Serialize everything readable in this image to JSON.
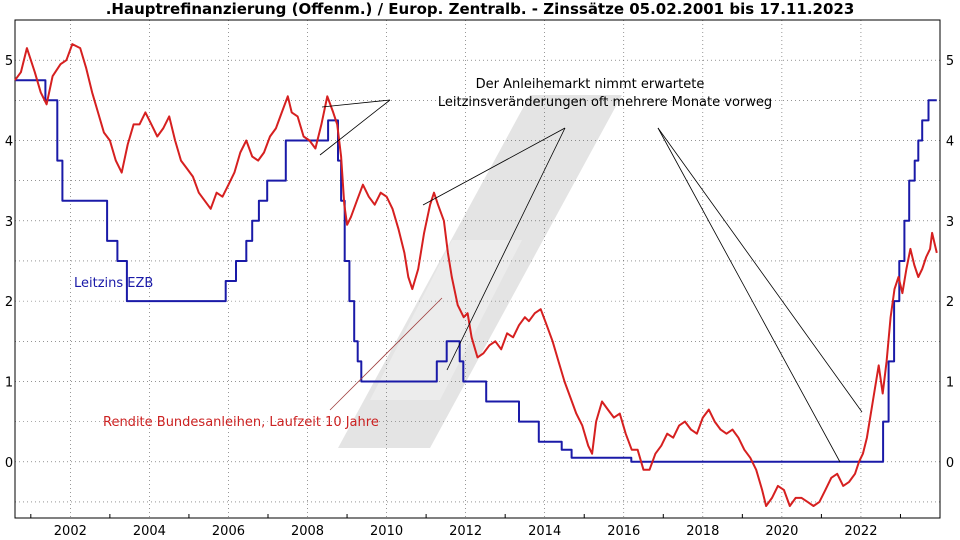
{
  "chart_data": {
    "type": "line",
    "title": ".Hauptrefinanzierung (Offenm.) / Europ. Zentralb. - Zinssätze 05.02.2001 bis 17.11.2023",
    "xlabel": "",
    "ylabel": "",
    "xlim": [
      2000.6,
      2024.0
    ],
    "ylim": [
      -0.7,
      5.5
    ],
    "x_ticks": [
      2002,
      2004,
      2006,
      2008,
      2010,
      2012,
      2014,
      2016,
      2018,
      2020,
      2022
    ],
    "x_tick_labels": [
      "2002",
      "2004",
      "2006",
      "2008",
      "2010",
      "2012",
      "2014",
      "2016",
      "2018",
      "2020",
      "2022"
    ],
    "y_ticks": [
      0,
      1,
      2,
      3,
      4,
      5
    ],
    "y_tick_labels": [
      "0",
      "1",
      "2",
      "3",
      "4",
      "5"
    ],
    "grid": true,
    "series": [
      {
        "name": "Leitzins EZB",
        "color": "#1a1aa8",
        "step": true,
        "points": [
          [
            2000.6,
            4.75
          ],
          [
            2001.37,
            4.5
          ],
          [
            2001.67,
            3.75
          ],
          [
            2001.8,
            3.25
          ],
          [
            2002.93,
            2.75
          ],
          [
            2003.19,
            2.5
          ],
          [
            2003.43,
            2.0
          ],
          [
            2005.93,
            2.25
          ],
          [
            2006.19,
            2.5
          ],
          [
            2006.45,
            2.75
          ],
          [
            2006.6,
            3.0
          ],
          [
            2006.77,
            3.25
          ],
          [
            2006.98,
            3.5
          ],
          [
            2007.45,
            3.75
          ],
          [
            2007.45,
            4.0
          ],
          [
            2008.52,
            4.25
          ],
          [
            2008.77,
            3.75
          ],
          [
            2008.85,
            3.25
          ],
          [
            2008.94,
            2.5
          ],
          [
            2009.06,
            2.0
          ],
          [
            2009.18,
            1.5
          ],
          [
            2009.27,
            1.25
          ],
          [
            2009.36,
            1.0
          ],
          [
            2011.27,
            1.25
          ],
          [
            2011.52,
            1.5
          ],
          [
            2011.85,
            1.25
          ],
          [
            2011.94,
            1.0
          ],
          [
            2012.52,
            0.75
          ],
          [
            2013.35,
            0.5
          ],
          [
            2013.85,
            0.25
          ],
          [
            2014.43,
            0.15
          ],
          [
            2014.68,
            0.05
          ],
          [
            2016.19,
            0.0
          ],
          [
            2022.56,
            0.5
          ],
          [
            2022.7,
            1.25
          ],
          [
            2022.84,
            2.0
          ],
          [
            2022.97,
            2.5
          ],
          [
            2023.1,
            3.0
          ],
          [
            2023.22,
            3.5
          ],
          [
            2023.36,
            3.75
          ],
          [
            2023.45,
            4.0
          ],
          [
            2023.55,
            4.25
          ],
          [
            2023.71,
            4.5
          ],
          [
            2023.92,
            4.5
          ]
        ]
      },
      {
        "name": "Rendite Bundesanleihen, Laufzeit 10 Jahre",
        "color": "#d62020",
        "step": false,
        "points": [
          [
            2000.6,
            4.75
          ],
          [
            2000.75,
            4.85
          ],
          [
            2000.9,
            5.15
          ],
          [
            2001.1,
            4.85
          ],
          [
            2001.25,
            4.6
          ],
          [
            2001.4,
            4.45
          ],
          [
            2001.55,
            4.8
          ],
          [
            2001.75,
            4.95
          ],
          [
            2001.9,
            5.0
          ],
          [
            2002.05,
            5.2
          ],
          [
            2002.25,
            5.15
          ],
          [
            2002.4,
            4.9
          ],
          [
            2002.55,
            4.6
          ],
          [
            2002.7,
            4.35
          ],
          [
            2002.85,
            4.1
          ],
          [
            2003.0,
            4.0
          ],
          [
            2003.15,
            3.75
          ],
          [
            2003.3,
            3.6
          ],
          [
            2003.45,
            3.95
          ],
          [
            2003.6,
            4.2
          ],
          [
            2003.75,
            4.2
          ],
          [
            2003.9,
            4.35
          ],
          [
            2004.05,
            4.2
          ],
          [
            2004.2,
            4.05
          ],
          [
            2004.35,
            4.15
          ],
          [
            2004.5,
            4.3
          ],
          [
            2004.65,
            4.0
          ],
          [
            2004.8,
            3.75
          ],
          [
            2004.95,
            3.65
          ],
          [
            2005.1,
            3.55
          ],
          [
            2005.25,
            3.35
          ],
          [
            2005.4,
            3.25
          ],
          [
            2005.55,
            3.15
          ],
          [
            2005.7,
            3.35
          ],
          [
            2005.85,
            3.3
          ],
          [
            2006.0,
            3.45
          ],
          [
            2006.15,
            3.6
          ],
          [
            2006.3,
            3.85
          ],
          [
            2006.45,
            4.0
          ],
          [
            2006.6,
            3.8
          ],
          [
            2006.75,
            3.75
          ],
          [
            2006.9,
            3.85
          ],
          [
            2007.05,
            4.05
          ],
          [
            2007.2,
            4.15
          ],
          [
            2007.35,
            4.35
          ],
          [
            2007.5,
            4.55
          ],
          [
            2007.6,
            4.35
          ],
          [
            2007.75,
            4.3
          ],
          [
            2007.9,
            4.05
          ],
          [
            2008.05,
            4.0
          ],
          [
            2008.2,
            3.9
          ],
          [
            2008.35,
            4.2
          ],
          [
            2008.5,
            4.55
          ],
          [
            2008.65,
            4.35
          ],
          [
            2008.75,
            4.2
          ],
          [
            2008.85,
            3.8
          ],
          [
            2008.93,
            3.2
          ],
          [
            2009.0,
            2.95
          ],
          [
            2009.1,
            3.05
          ],
          [
            2009.25,
            3.25
          ],
          [
            2009.4,
            3.45
          ],
          [
            2009.55,
            3.3
          ],
          [
            2009.7,
            3.2
          ],
          [
            2009.85,
            3.35
          ],
          [
            2010.0,
            3.3
          ],
          [
            2010.15,
            3.15
          ],
          [
            2010.3,
            2.9
          ],
          [
            2010.45,
            2.6
          ],
          [
            2010.55,
            2.3
          ],
          [
            2010.65,
            2.15
          ],
          [
            2010.8,
            2.4
          ],
          [
            2010.95,
            2.85
          ],
          [
            2011.1,
            3.2
          ],
          [
            2011.2,
            3.35
          ],
          [
            2011.3,
            3.2
          ],
          [
            2011.45,
            3.0
          ],
          [
            2011.55,
            2.6
          ],
          [
            2011.65,
            2.3
          ],
          [
            2011.8,
            1.95
          ],
          [
            2011.95,
            1.8
          ],
          [
            2012.05,
            1.85
          ],
          [
            2012.15,
            1.55
          ],
          [
            2012.3,
            1.3
          ],
          [
            2012.45,
            1.35
          ],
          [
            2012.6,
            1.45
          ],
          [
            2012.75,
            1.5
          ],
          [
            2012.9,
            1.4
          ],
          [
            2013.05,
            1.6
          ],
          [
            2013.2,
            1.55
          ],
          [
            2013.35,
            1.7
          ],
          [
            2013.5,
            1.8
          ],
          [
            2013.6,
            1.75
          ],
          [
            2013.75,
            1.85
          ],
          [
            2013.9,
            1.9
          ],
          [
            2014.05,
            1.7
          ],
          [
            2014.2,
            1.5
          ],
          [
            2014.35,
            1.25
          ],
          [
            2014.5,
            1.0
          ],
          [
            2014.65,
            0.8
          ],
          [
            2014.8,
            0.6
          ],
          [
            2014.95,
            0.45
          ],
          [
            2015.1,
            0.2
          ],
          [
            2015.2,
            0.1
          ],
          [
            2015.3,
            0.5
          ],
          [
            2015.45,
            0.75
          ],
          [
            2015.6,
            0.65
          ],
          [
            2015.75,
            0.55
          ],
          [
            2015.9,
            0.6
          ],
          [
            2016.05,
            0.35
          ],
          [
            2016.2,
            0.15
          ],
          [
            2016.35,
            0.15
          ],
          [
            2016.5,
            -0.1
          ],
          [
            2016.65,
            -0.1
          ],
          [
            2016.8,
            0.1
          ],
          [
            2016.95,
            0.2
          ],
          [
            2017.1,
            0.35
          ],
          [
            2017.25,
            0.3
          ],
          [
            2017.4,
            0.45
          ],
          [
            2017.55,
            0.5
          ],
          [
            2017.7,
            0.4
          ],
          [
            2017.85,
            0.35
          ],
          [
            2018.0,
            0.55
          ],
          [
            2018.15,
            0.65
          ],
          [
            2018.3,
            0.5
          ],
          [
            2018.45,
            0.4
          ],
          [
            2018.6,
            0.35
          ],
          [
            2018.75,
            0.4
          ],
          [
            2018.9,
            0.3
          ],
          [
            2019.05,
            0.15
          ],
          [
            2019.2,
            0.05
          ],
          [
            2019.35,
            -0.1
          ],
          [
            2019.5,
            -0.35
          ],
          [
            2019.6,
            -0.55
          ],
          [
            2019.75,
            -0.45
          ],
          [
            2019.9,
            -0.3
          ],
          [
            2020.05,
            -0.35
          ],
          [
            2020.2,
            -0.55
          ],
          [
            2020.35,
            -0.45
          ],
          [
            2020.5,
            -0.45
          ],
          [
            2020.65,
            -0.5
          ],
          [
            2020.8,
            -0.55
          ],
          [
            2020.95,
            -0.5
          ],
          [
            2021.1,
            -0.35
          ],
          [
            2021.25,
            -0.2
          ],
          [
            2021.4,
            -0.15
          ],
          [
            2021.55,
            -0.3
          ],
          [
            2021.7,
            -0.25
          ],
          [
            2021.85,
            -0.15
          ],
          [
            2021.95,
            0.0
          ],
          [
            2022.05,
            0.1
          ],
          [
            2022.15,
            0.3
          ],
          [
            2022.3,
            0.75
          ],
          [
            2022.45,
            1.2
          ],
          [
            2022.55,
            0.85
          ],
          [
            2022.65,
            1.25
          ],
          [
            2022.75,
            1.8
          ],
          [
            2022.85,
            2.15
          ],
          [
            2022.95,
            2.3
          ],
          [
            2023.05,
            2.1
          ],
          [
            2023.15,
            2.4
          ],
          [
            2023.25,
            2.65
          ],
          [
            2023.35,
            2.45
          ],
          [
            2023.45,
            2.3
          ],
          [
            2023.55,
            2.4
          ],
          [
            2023.65,
            2.55
          ],
          [
            2023.75,
            2.65
          ],
          [
            2023.8,
            2.85
          ],
          [
            2023.92,
            2.6
          ]
        ]
      }
    ],
    "annotations": [
      {
        "text": "Der Anleihemarkt nimmt erwartete"
      },
      {
        "text": "Leitzinsveränderungen oft mehrere Monate vorweg"
      }
    ],
    "series_labels": [
      {
        "text": "Leitzins EZB",
        "color": "#1a1aa8"
      },
      {
        "text": "Rendite Bundesanleihen, Laufzeit 10 Jahre",
        "color": "#cc2222"
      }
    ]
  }
}
